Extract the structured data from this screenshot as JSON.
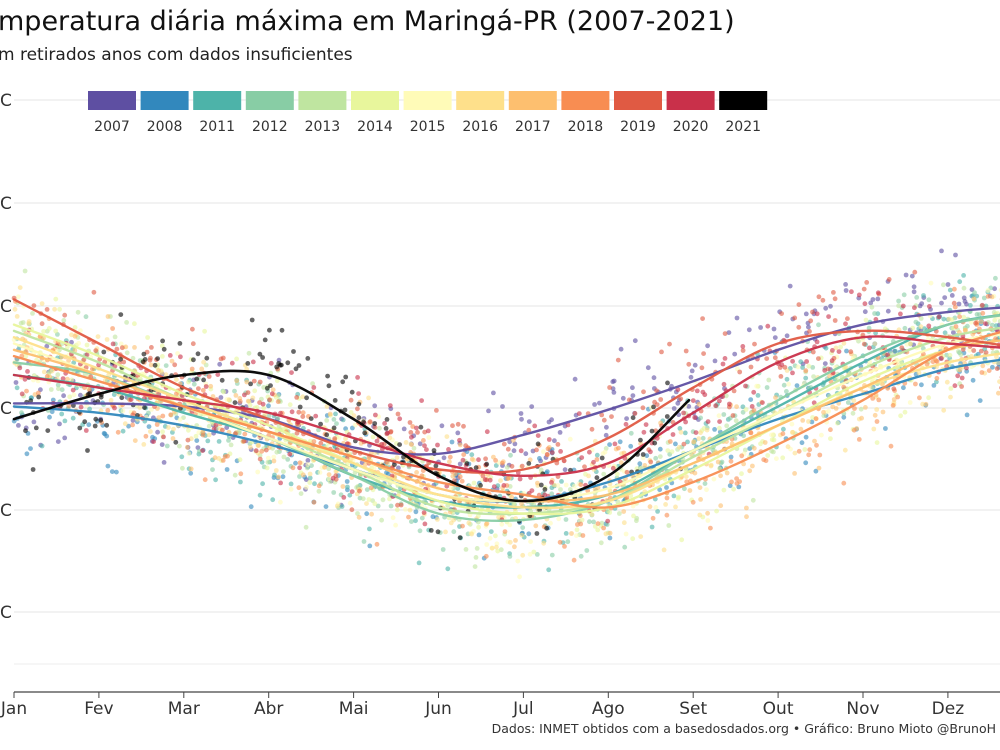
{
  "title": "mperatura diária máxima em Maringá-PR (2007-2021)",
  "subtitle": "m retirados anos com dados insuficientes",
  "caption": "Dados: INMET obtidos com a basedosdados.org • Gráfico: Bruno Mioto @BrunoH",
  "chart_data": {
    "type": "scatter",
    "overlay": "smoothed line per year",
    "x_unit": "month",
    "x_categories": [
      "Jan",
      "Fev",
      "Mar",
      "Abr",
      "Mai",
      "Jun",
      "Jul",
      "Ago",
      "Set",
      "Out",
      "Nov",
      "Dez"
    ],
    "y_tick_labels": [
      "C",
      "C",
      "C",
      "C",
      "C",
      "C"
    ],
    "ylabel": "",
    "grid": true,
    "legend_position": "top",
    "series": [
      {
        "name": "2007",
        "color": "#5e4fa2",
        "x": [
          0,
          1,
          2,
          3,
          4,
          5,
          6,
          7,
          8,
          9,
          10,
          11,
          11.95
        ],
        "y": [
          0.545,
          0.545,
          0.55,
          0.57,
          0.615,
          0.625,
          0.595,
          0.555,
          0.51,
          0.46,
          0.42,
          0.4,
          0.39
        ]
      },
      {
        "name": "2008",
        "color": "#3288bd",
        "x": [
          0,
          1,
          2,
          3,
          4,
          5,
          6,
          7,
          8,
          9,
          10,
          11,
          11.95
        ],
        "y": [
          0.55,
          0.56,
          0.58,
          0.61,
          0.65,
          0.69,
          0.7,
          0.67,
          0.62,
          0.57,
          0.53,
          0.49,
          0.47
        ]
      },
      {
        "name": "2011",
        "color": "#4db3a9",
        "x": [
          0,
          1,
          2,
          3,
          4,
          5,
          6,
          7,
          8,
          9,
          10,
          11,
          11.95
        ],
        "y": [
          0.5,
          0.52,
          0.56,
          0.6,
          0.66,
          0.7,
          0.71,
          0.69,
          0.62,
          0.55,
          0.48,
          0.42,
          0.4
        ]
      },
      {
        "name": "2012",
        "color": "#88cda5",
        "x": [
          0,
          1,
          2,
          3,
          4,
          5,
          6,
          7,
          8,
          9,
          10,
          11,
          11.95
        ],
        "y": [
          0.48,
          0.5,
          0.55,
          0.6,
          0.66,
          0.72,
          0.73,
          0.7,
          0.62,
          0.54,
          0.47,
          0.42,
          0.4
        ]
      },
      {
        "name": "2013",
        "color": "#bfe5a0",
        "x": [
          0,
          1,
          2,
          3,
          4,
          5,
          6,
          7,
          8,
          9,
          10,
          11,
          11.95
        ],
        "y": [
          0.43,
          0.48,
          0.54,
          0.59,
          0.65,
          0.71,
          0.72,
          0.7,
          0.63,
          0.56,
          0.49,
          0.44,
          0.42
        ]
      },
      {
        "name": "2014",
        "color": "#e8f69c",
        "x": [
          0,
          1,
          2,
          3,
          4,
          5,
          6,
          7,
          8,
          9,
          10,
          11,
          11.95
        ],
        "y": [
          0.42,
          0.47,
          0.53,
          0.58,
          0.64,
          0.7,
          0.72,
          0.71,
          0.65,
          0.58,
          0.51,
          0.46,
          0.44
        ]
      },
      {
        "name": "2015",
        "color": "#fffbb8",
        "x": [
          0,
          1,
          2,
          3,
          4,
          5,
          6,
          7,
          8,
          9,
          10,
          11,
          11.95
        ],
        "y": [
          0.45,
          0.5,
          0.55,
          0.6,
          0.65,
          0.69,
          0.7,
          0.68,
          0.62,
          0.56,
          0.5,
          0.45,
          0.43
        ]
      },
      {
        "name": "2016",
        "color": "#fee08b",
        "x": [
          0,
          1,
          2,
          3,
          4,
          5,
          6,
          7,
          8,
          9,
          10,
          11,
          11.95
        ],
        "y": [
          0.44,
          0.49,
          0.54,
          0.59,
          0.64,
          0.69,
          0.71,
          0.7,
          0.64,
          0.58,
          0.52,
          0.48,
          0.46
        ]
      },
      {
        "name": "2017",
        "color": "#fdbf6f",
        "x": [
          0,
          1,
          2,
          3,
          4,
          5,
          6,
          7,
          8,
          9,
          10,
          11,
          11.95
        ],
        "y": [
          0.46,
          0.5,
          0.55,
          0.59,
          0.63,
          0.68,
          0.7,
          0.69,
          0.64,
          0.58,
          0.52,
          0.46,
          0.44
        ]
      },
      {
        "name": "2018",
        "color": "#f88d52",
        "x": [
          0,
          1,
          2,
          3,
          4,
          5,
          6,
          7,
          8,
          9,
          10,
          11,
          11.95
        ],
        "y": [
          0.47,
          0.51,
          0.55,
          0.59,
          0.63,
          0.67,
          0.69,
          0.71,
          0.67,
          0.61,
          0.54,
          0.46,
          0.42
        ]
      },
      {
        "name": "2019",
        "color": "#e05a43",
        "x": [
          0,
          1,
          2,
          3,
          4,
          5,
          6,
          7,
          8,
          9,
          10,
          11,
          11.95
        ],
        "y": [
          0.38,
          0.45,
          0.52,
          0.57,
          0.62,
          0.65,
          0.65,
          0.6,
          0.52,
          0.45,
          0.43,
          0.44,
          0.46
        ]
      },
      {
        "name": "2020",
        "color": "#c9304a",
        "x": [
          0,
          1,
          2,
          3,
          4,
          5,
          6,
          7,
          8,
          9,
          10,
          11,
          11.95
        ],
        "y": [
          0.5,
          0.52,
          0.54,
          0.56,
          0.6,
          0.64,
          0.66,
          0.64,
          0.56,
          0.48,
          0.44,
          0.45,
          0.46
        ]
      },
      {
        "name": "2021",
        "color": "#000000",
        "x": [
          0,
          1,
          2,
          3,
          4,
          5,
          6,
          7,
          7.95
        ],
        "y": [
          0.57,
          0.53,
          0.5,
          0.5,
          0.57,
          0.66,
          0.7,
          0.66,
          0.54
        ]
      }
    ]
  }
}
